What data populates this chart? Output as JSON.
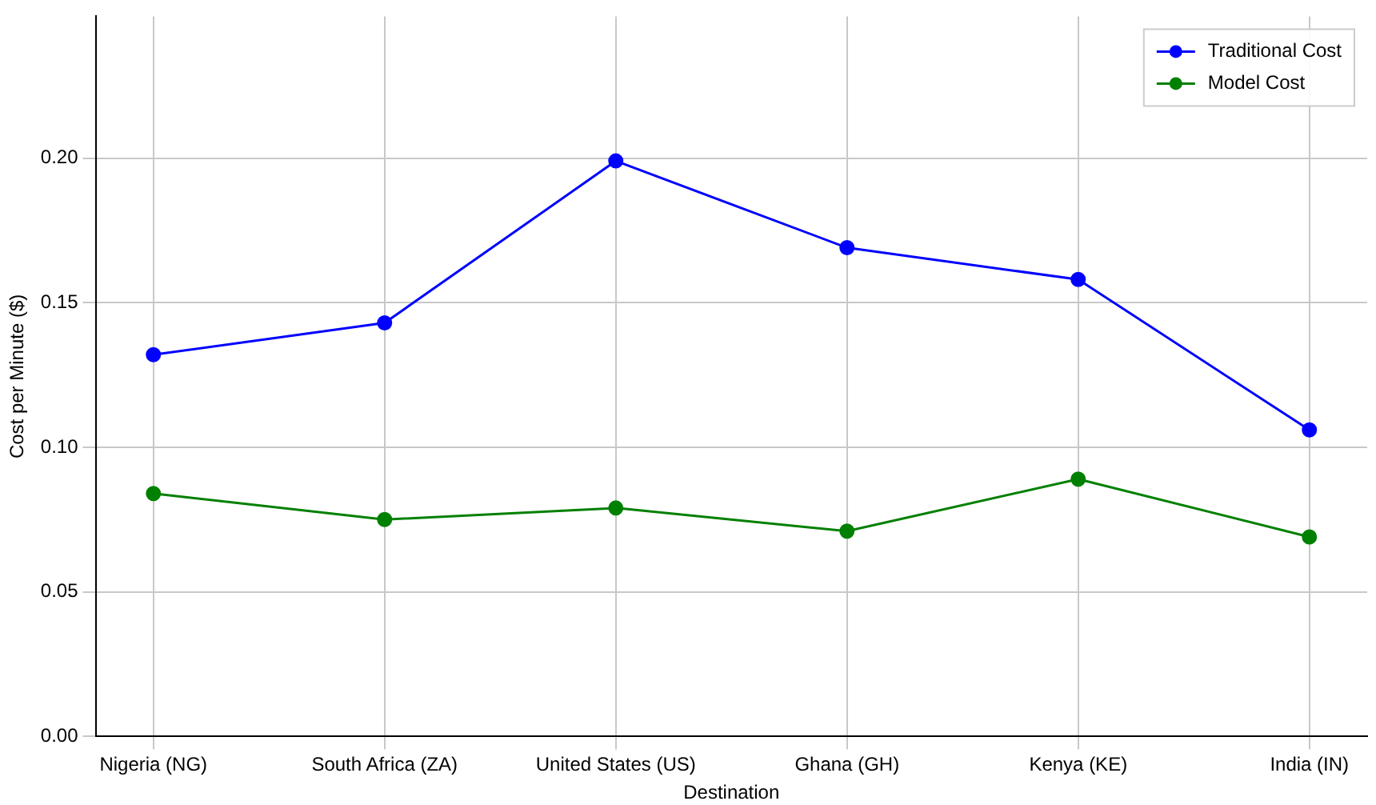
{
  "chart_data": {
    "type": "line",
    "xlabel": "Destination",
    "ylabel": "Cost per Minute ($)",
    "categories": [
      "Nigeria (NG)",
      "South Africa (ZA)",
      "United States (US)",
      "Ghana (GH)",
      "Kenya (KE)",
      "India (IN)"
    ],
    "series": [
      {
        "name": "Traditional Cost",
        "color": "#0000ff",
        "values": [
          0.132,
          0.143,
          0.199,
          0.169,
          0.158,
          0.106
        ]
      },
      {
        "name": "Model Cost",
        "color": "#008000",
        "values": [
          0.084,
          0.075,
          0.079,
          0.071,
          0.089,
          0.069
        ]
      }
    ],
    "ylim": [
      0,
      0.249
    ],
    "yticks": [
      {
        "value": 0,
        "label": "0.00"
      },
      {
        "value": 0.05,
        "label": "0.05"
      },
      {
        "value": 0.1,
        "label": "0.10"
      },
      {
        "value": 0.15,
        "label": "0.15"
      },
      {
        "value": 0.2,
        "label": "0.20"
      }
    ],
    "grid": true,
    "legend": "top right",
    "marker": "circle",
    "line_style": "solid"
  }
}
